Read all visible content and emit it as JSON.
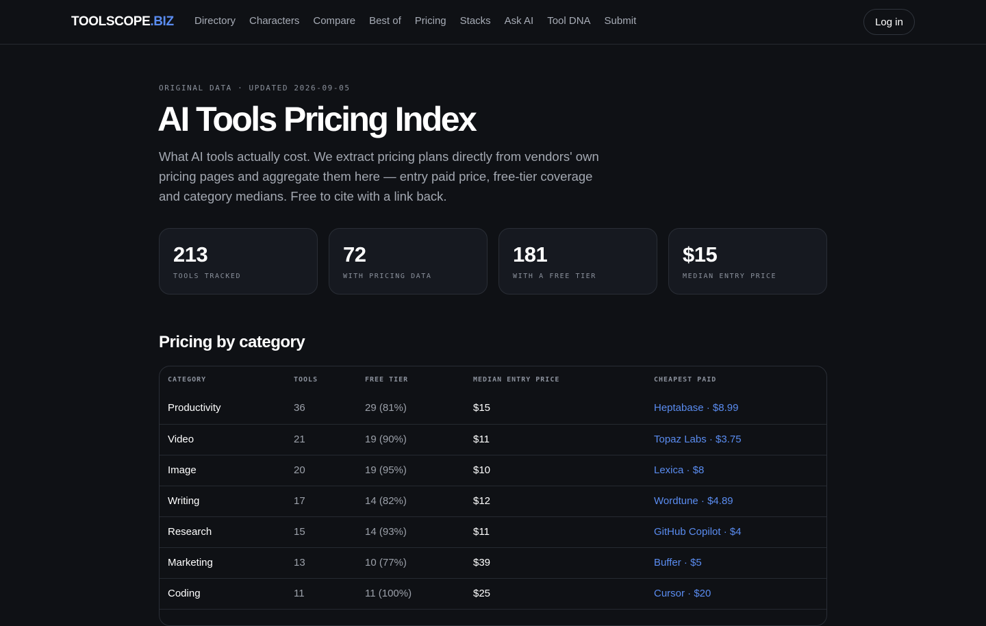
{
  "header": {
    "logo_main": "TOOLSCOPE",
    "logo_tld": ".BIZ",
    "nav": [
      {
        "label": "Directory"
      },
      {
        "label": "Characters"
      },
      {
        "label": "Compare"
      },
      {
        "label": "Best of"
      },
      {
        "label": "Pricing"
      },
      {
        "label": "Stacks"
      },
      {
        "label": "Ask AI"
      },
      {
        "label": "Tool DNA"
      },
      {
        "label": "Submit"
      }
    ],
    "login_label": "Log in"
  },
  "hero": {
    "eyebrow": "ORIGINAL DATA · UPDATED 2026-09-05",
    "title": "AI Tools Pricing Index",
    "lede": "What AI tools actually cost. We extract pricing plans directly from vendors' own pricing pages and aggregate them here — entry paid price, free-tier coverage and category medians. Free to cite with a link back."
  },
  "stats": [
    {
      "value": "213",
      "label": "TOOLS TRACKED"
    },
    {
      "value": "72",
      "label": "WITH PRICING DATA"
    },
    {
      "value": "181",
      "label": "WITH A FREE TIER"
    },
    {
      "value": "$15",
      "label": "MEDIAN ENTRY PRICE"
    }
  ],
  "category_table": {
    "title": "Pricing by category",
    "columns": [
      "CATEGORY",
      "TOOLS",
      "FREE TIER",
      "MEDIAN ENTRY PRICE",
      "CHEAPEST PAID"
    ],
    "rows": [
      {
        "category": "Productivity",
        "tools": "36",
        "free_tier": "29 (81%)",
        "median": "$15",
        "cheapest": "Heptabase · $8.99"
      },
      {
        "category": "Video",
        "tools": "21",
        "free_tier": "19 (90%)",
        "median": "$11",
        "cheapest": "Topaz Labs · $3.75"
      },
      {
        "category": "Image",
        "tools": "20",
        "free_tier": "19 (95%)",
        "median": "$10",
        "cheapest": "Lexica · $8"
      },
      {
        "category": "Writing",
        "tools": "17",
        "free_tier": "14 (82%)",
        "median": "$12",
        "cheapest": "Wordtune · $4.89"
      },
      {
        "category": "Research",
        "tools": "15",
        "free_tier": "14 (93%)",
        "median": "$11",
        "cheapest": "GitHub Copilot · $4"
      },
      {
        "category": "Marketing",
        "tools": "13",
        "free_tier": "10 (77%)",
        "median": "$39",
        "cheapest": "Buffer · $5"
      },
      {
        "category": "Coding",
        "tools": "11",
        "free_tier": "11 (100%)",
        "median": "$25",
        "cheapest": "Cursor · $20"
      }
    ]
  },
  "colors": {
    "background": "#0f1115",
    "card": "#161920",
    "accent": "#5a8cf0",
    "muted": "#8b919c"
  }
}
